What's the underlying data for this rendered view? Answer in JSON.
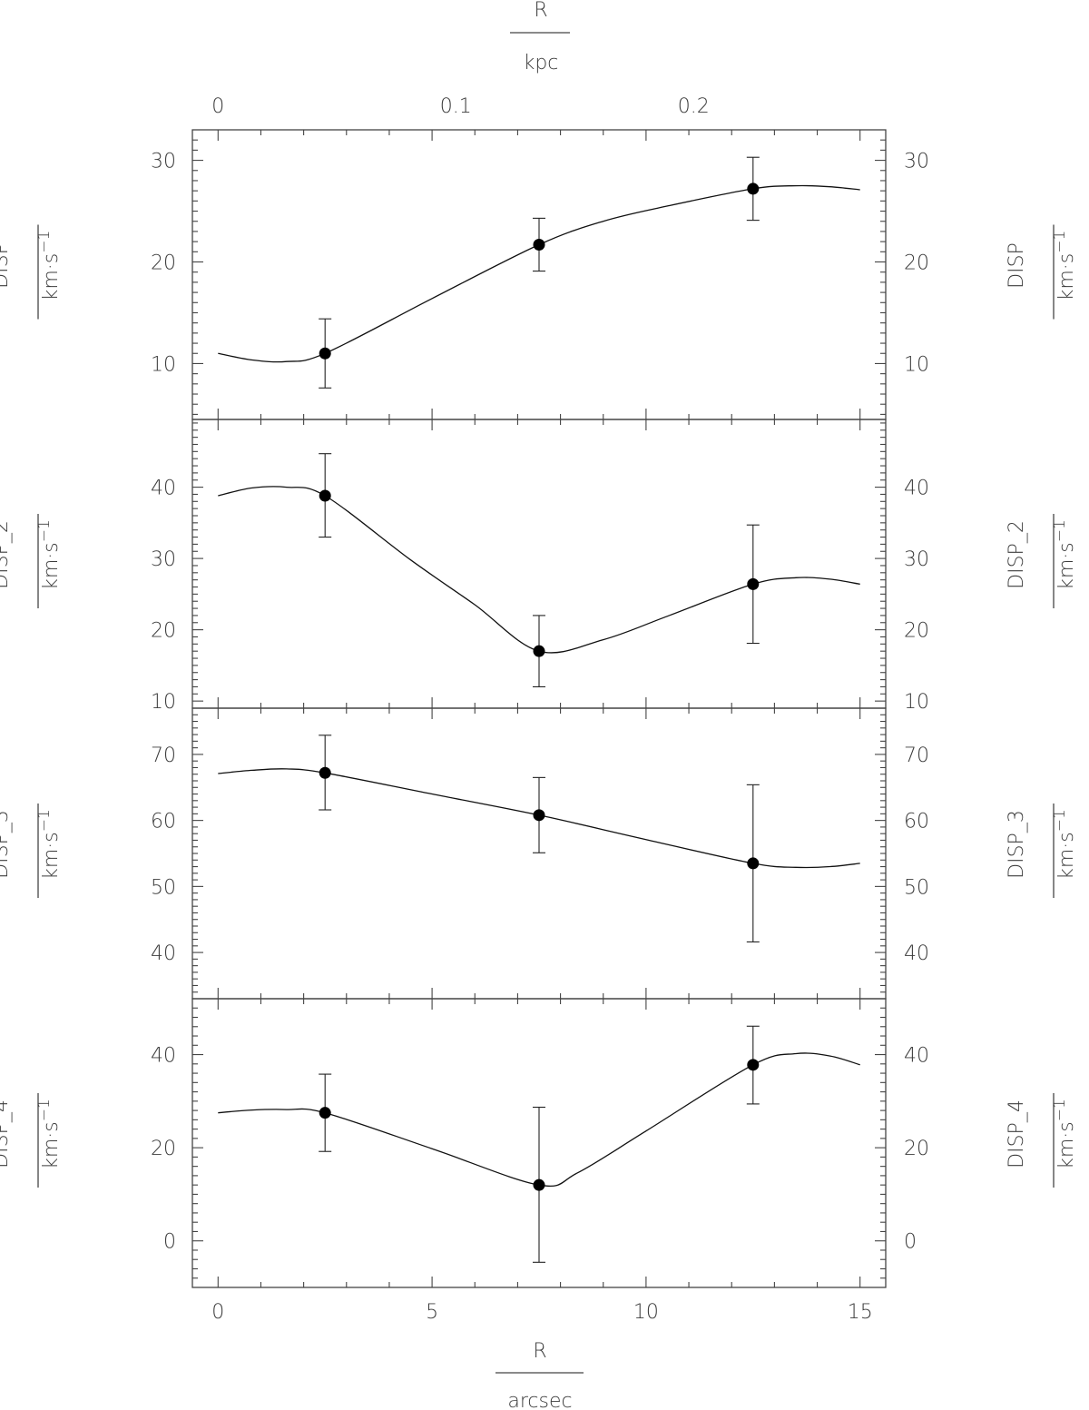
{
  "chart_data": {
    "type": "line",
    "bottom_axis": {
      "label_num": "R",
      "label_den": "arcsec",
      "ticks": [
        0,
        5,
        10,
        15
      ],
      "range": [
        -0.6,
        15.6
      ]
    },
    "top_axis": {
      "label_num": "R",
      "label_den": "kpc",
      "ticks": [
        "0",
        "0.1",
        "0.2"
      ],
      "tick_values": [
        0,
        0.1,
        0.2
      ],
      "kpc_per_arcsec": 0.018
    },
    "unit_label": "km·s",
    "unit_exp": "−1",
    "panels": [
      {
        "ylabel": "DISP",
        "ylim": [
          4.5,
          33
        ],
        "yticks": [
          10,
          20,
          30
        ],
        "points": [
          {
            "x": 2.5,
            "y": 11.0,
            "err_low": 7.6,
            "err_high": 14.4
          },
          {
            "x": 7.5,
            "y": 21.7,
            "err_low": 19.1,
            "err_high": 24.3
          },
          {
            "x": 12.5,
            "y": 27.2,
            "err_low": 24.1,
            "err_high": 30.3
          }
        ],
        "curve": [
          [
            0,
            11.0
          ],
          [
            0.8,
            10.35
          ],
          [
            1.6,
            10.2
          ],
          [
            2.5,
            11.0
          ],
          [
            5.0,
            16.4
          ],
          [
            7.5,
            21.7
          ],
          [
            9.0,
            24.0
          ],
          [
            10.5,
            25.5
          ],
          [
            12.5,
            27.2
          ],
          [
            13.5,
            27.5
          ],
          [
            14.3,
            27.4
          ],
          [
            15,
            27.1
          ]
        ]
      },
      {
        "ylabel": "DISP_2",
        "ylim": [
          9,
          49.5
        ],
        "yticks": [
          10,
          20,
          30,
          40
        ],
        "points": [
          {
            "x": 2.5,
            "y": 38.8,
            "err_low": 33.0,
            "err_high": 44.7
          },
          {
            "x": 7.5,
            "y": 17.0,
            "err_low": 12.0,
            "err_high": 22.0
          },
          {
            "x": 12.5,
            "y": 26.4,
            "err_low": 18.1,
            "err_high": 34.7
          }
        ],
        "curve": [
          [
            0,
            38.8
          ],
          [
            0.8,
            39.9
          ],
          [
            1.6,
            40.0
          ],
          [
            2.5,
            38.8
          ],
          [
            4.5,
            29.8
          ],
          [
            6.0,
            23.5
          ],
          [
            7.5,
            17.0
          ],
          [
            9.0,
            18.6
          ],
          [
            10.5,
            21.9
          ],
          [
            12.5,
            26.4
          ],
          [
            13.5,
            27.3
          ],
          [
            14.3,
            27.1
          ],
          [
            15,
            26.4
          ]
        ]
      },
      {
        "ylabel": "DISP_3",
        "ylim": [
          33,
          77
        ],
        "yticks": [
          40,
          50,
          60,
          70
        ],
        "points": [
          {
            "x": 2.5,
            "y": 67.2,
            "err_low": 61.6,
            "err_high": 72.9
          },
          {
            "x": 7.5,
            "y": 60.8,
            "err_low": 55.1,
            "err_high": 66.5
          },
          {
            "x": 12.5,
            "y": 53.5,
            "err_low": 41.6,
            "err_high": 65.4
          }
        ],
        "curve": [
          [
            0,
            67.1
          ],
          [
            0.8,
            67.6
          ],
          [
            1.6,
            67.8
          ],
          [
            2.5,
            67.2
          ],
          [
            5.0,
            64.0
          ],
          [
            7.5,
            60.8
          ],
          [
            10.0,
            57.1
          ],
          [
            12.5,
            53.5
          ],
          [
            13.5,
            52.9
          ],
          [
            14.3,
            53.0
          ],
          [
            15,
            53.5
          ]
        ]
      },
      {
        "ylabel": "DISP_4",
        "ylim": [
          -10,
          52
        ],
        "yticks": [
          0,
          20,
          40
        ],
        "points": [
          {
            "x": 2.5,
            "y": 27.5,
            "err_low": 19.2,
            "err_high": 35.8
          },
          {
            "x": 7.5,
            "y": 12.0,
            "err_low": -4.6,
            "err_high": 28.7
          },
          {
            "x": 12.5,
            "y": 37.8,
            "err_low": 29.4,
            "err_high": 46.1
          }
        ],
        "curve": [
          [
            0,
            27.5
          ],
          [
            0.8,
            28.1
          ],
          [
            1.6,
            28.2
          ],
          [
            2.5,
            27.5
          ],
          [
            5.0,
            19.8
          ],
          [
            7.5,
            12.0
          ],
          [
            8.4,
            14.6
          ],
          [
            10.0,
            23.6
          ],
          [
            12.5,
            37.8
          ],
          [
            13.5,
            40.2
          ],
          [
            14.3,
            39.7
          ],
          [
            15,
            37.8
          ]
        ]
      }
    ]
  }
}
